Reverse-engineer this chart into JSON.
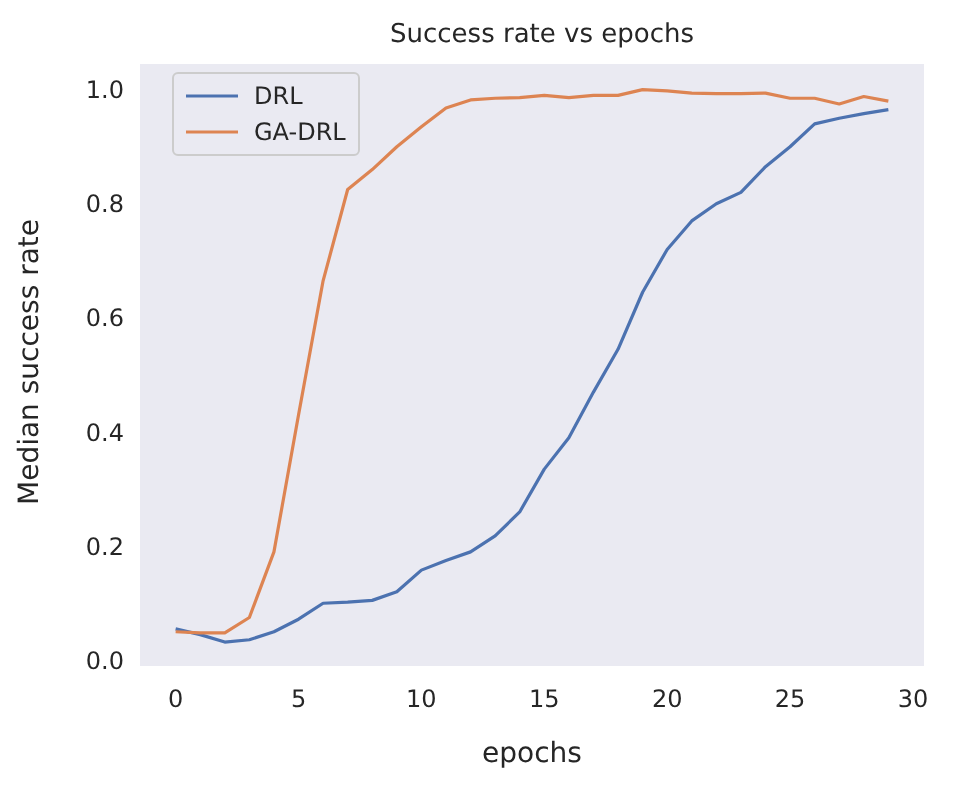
{
  "chart_data": {
    "type": "line",
    "title": "Success rate vs epochs",
    "xlabel": "epochs",
    "ylabel": "Median success rate",
    "x": [
      0,
      1,
      2,
      3,
      4,
      5,
      6,
      7,
      8,
      9,
      10,
      11,
      12,
      13,
      14,
      15,
      16,
      17,
      18,
      19,
      20,
      21,
      22,
      23,
      24,
      25,
      26,
      27,
      28,
      29
    ],
    "series": [
      {
        "name": "DRL",
        "color": "#4c72b0",
        "values": [
          0.055,
          0.045,
          0.032,
          0.036,
          0.05,
          0.072,
          0.1,
          0.102,
          0.105,
          0.12,
          0.158,
          0.175,
          0.19,
          0.218,
          0.26,
          0.335,
          0.39,
          0.47,
          0.545,
          0.645,
          0.72,
          0.77,
          0.8,
          0.82,
          0.865,
          0.9,
          0.94,
          0.95,
          0.958,
          0.965
        ]
      },
      {
        "name": "GA-DRL",
        "color": "#dd8452",
        "values": [
          0.05,
          0.048,
          0.048,
          0.075,
          0.19,
          0.43,
          0.665,
          0.825,
          0.86,
          0.9,
          0.935,
          0.968,
          0.982,
          0.985,
          0.986,
          0.99,
          0.986,
          0.99,
          0.99,
          1.0,
          0.998,
          0.994,
          0.993,
          0.993,
          0.994,
          0.985,
          0.985,
          0.975,
          0.988,
          0.98
        ]
      }
    ],
    "xlim": [
      -1.45,
      30.45
    ],
    "xticks": [
      0,
      5,
      10,
      15,
      20,
      25,
      30
    ],
    "ylim": [
      -0.01,
      1.045
    ],
    "yticks": [
      {
        "value": 0,
        "label": "0.0"
      },
      {
        "value": 0.2,
        "label": "0.2"
      },
      {
        "value": 0.4,
        "label": "0.4"
      },
      {
        "value": 0.6,
        "label": "0.6"
      },
      {
        "value": 0.8,
        "label": "0.8"
      },
      {
        "value": 1,
        "label": "1.0"
      }
    ],
    "grid": false,
    "legend": "top left",
    "marker": "none",
    "line_style": "solid"
  }
}
